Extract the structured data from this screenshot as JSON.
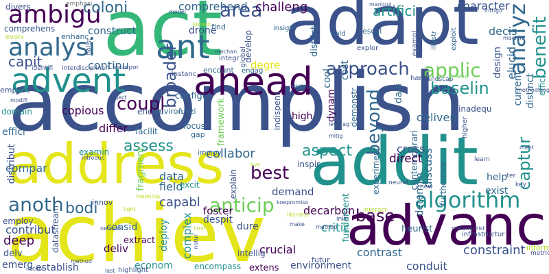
{
  "palette": {
    "dark_purple": "#440154",
    "indigo": "#3b528b",
    "blue": "#31688e",
    "teal": "#21918c",
    "green": "#35b779",
    "light_green": "#6ece58",
    "yellow_green": "#b5de2b",
    "yellow": "#e4e51a",
    "grey": "#777777"
  },
  "words": [
    {
      "text": "accomplish",
      "color": "#3b528b"
    },
    {
      "text": "achiev",
      "color": "#e4e51a"
    },
    {
      "text": "act",
      "color": "#35b779"
    },
    {
      "text": "adapt",
      "color": "#3b528b"
    },
    {
      "text": "addit",
      "color": "#21918c"
    },
    {
      "text": "address",
      "color": "#e4e51a"
    },
    {
      "text": "advanc",
      "color": "#440154"
    },
    {
      "text": "ahead",
      "color": "#440154"
    },
    {
      "text": "advent",
      "color": "#21918c"
    },
    {
      "text": "ant",
      "color": "#31688e"
    },
    {
      "text": "analysi",
      "color": "#31688e"
    },
    {
      "text": "ambigu",
      "color": "#440154"
    },
    {
      "text": "divers",
      "color": "#3b528b"
    },
    {
      "text": "comprehens",
      "color": "#3b528b"
    },
    {
      "text": "evolv",
      "color": "#b5de2b"
    },
    {
      "text": "emphasi",
      "color": "#777777"
    },
    {
      "text": "coloni",
      "color": "#31688e"
    },
    {
      "text": "enhanc",
      "color": "#31688e"
    },
    {
      "text": "construct",
      "color": "#31688e"
    },
    {
      "text": "comprehend",
      "color": "#31688e"
    },
    {
      "text": "area",
      "color": "#3b528b"
    },
    {
      "text": "challeng",
      "color": "#440154"
    },
    {
      "text": "artifici",
      "color": "#21918c"
    },
    {
      "text": "character",
      "color": "#3b528b"
    },
    {
      "text": "capit",
      "color": "#3b528b"
    },
    {
      "text": "continu",
      "color": "#31688e"
    },
    {
      "text": "broader",
      "color": "#3b528b"
    },
    {
      "text": "approach",
      "color": "#3b528b"
    },
    {
      "text": "applic",
      "color": "#6ece58"
    },
    {
      "text": "analyz",
      "color": "#31688e"
    },
    {
      "text": "benefit",
      "color": "#21918c"
    },
    {
      "text": "baselin",
      "color": "#21918c"
    },
    {
      "text": "beyond",
      "color": "#31688e"
    },
    {
      "text": "drone",
      "color": "#3b528b"
    },
    {
      "text": "find",
      "color": "#31688e"
    },
    {
      "text": "develop",
      "color": "#3b528b"
    },
    {
      "text": "district",
      "color": "#31688e"
    },
    {
      "text": "escal",
      "color": "#31688e"
    },
    {
      "text": "decis",
      "color": "#31688e"
    },
    {
      "text": "elucid",
      "color": "#31688e"
    },
    {
      "text": "design",
      "color": "#3b528b"
    },
    {
      "text": "emphas",
      "color": "#3b528b"
    },
    {
      "text": "configur",
      "color": "#31688e"
    },
    {
      "text": "encount",
      "color": "#31688e"
    },
    {
      "text": "degre",
      "color": "#e4e51a"
    },
    {
      "text": "engag",
      "color": "#31688e"
    },
    {
      "text": "fuzzi",
      "color": "#31688e"
    },
    {
      "text": "evalu",
      "color": "#31688e"
    },
    {
      "text": "domain",
      "color": "#21918c"
    },
    {
      "text": "environ",
      "color": "#31688e"
    },
    {
      "text": "energi",
      "color": "#3b528b"
    },
    {
      "text": "effici",
      "color": "#31688e"
    },
    {
      "text": "differ",
      "color": "#440154"
    },
    {
      "text": "coupl",
      "color": "#440154"
    },
    {
      "text": "facilit",
      "color": "#31688e"
    },
    {
      "text": "focus",
      "color": "#31688e"
    },
    {
      "text": "gap",
      "color": "#31688e"
    },
    {
      "text": "cool",
      "color": "#31688e"
    },
    {
      "text": "high",
      "color": "#440154"
    },
    {
      "text": "dynam",
      "color": "#440154"
    },
    {
      "text": "cost",
      "color": "#31688e"
    },
    {
      "text": "demonstr",
      "color": "#31688e"
    },
    {
      "text": "daili",
      "color": "#31688e"
    },
    {
      "text": "deliveri",
      "color": "#31688e"
    },
    {
      "text": "contemporari",
      "color": "#31688e"
    },
    {
      "text": "distinct",
      "color": "#31688e"
    },
    {
      "text": "current",
      "color": "#31688e"
    },
    {
      "text": "effici",
      "color": "#21918c"
    },
    {
      "text": "inadequ",
      "color": "#3b528b"
    },
    {
      "text": "assess",
      "color": "#21918c"
    },
    {
      "text": "copious",
      "color": "#440154"
    },
    {
      "text": "compar",
      "color": "#31688e"
    },
    {
      "text": "collabor",
      "color": "#31688e"
    },
    {
      "text": "aspect",
      "color": "#21918c"
    },
    {
      "text": "captur",
      "color": "#21918c"
    },
    {
      "text": "cross",
      "color": "#3b528b"
    },
    {
      "text": "direct",
      "color": "#440154"
    },
    {
      "text": "discuss",
      "color": "#31688e"
    },
    {
      "text": "distribut",
      "color": "#3b528b"
    },
    {
      "text": "best",
      "color": "#440154"
    },
    {
      "text": "anoth",
      "color": "#31688e"
    },
    {
      "text": "bodi",
      "color": "#31688e"
    },
    {
      "text": "capabl",
      "color": "#3b528b"
    },
    {
      "text": "anticip",
      "color": "#6ece58"
    },
    {
      "text": "algorithm",
      "color": "#21918c"
    },
    {
      "text": "base",
      "color": "#440154"
    },
    {
      "text": "determin",
      "color": "#31688e"
    },
    {
      "text": "help",
      "color": "#31688e"
    },
    {
      "text": "exist",
      "color": "#31688e"
    },
    {
      "text": "data",
      "color": "#31688e"
    },
    {
      "text": "field",
      "color": "#31688e"
    },
    {
      "text": "excit",
      "color": "#21918c"
    },
    {
      "text": "explain",
      "color": "#3b528b"
    },
    {
      "text": "demand",
      "color": "#3b528b"
    },
    {
      "text": "decarbon",
      "color": "#440154"
    },
    {
      "text": "critic",
      "color": "#21918c"
    },
    {
      "text": "furthermor",
      "color": "#31688e"
    },
    {
      "text": "heurist",
      "color": "#31688e"
    },
    {
      "text": "consid",
      "color": "#31688e"
    },
    {
      "text": "deliv",
      "color": "#440154"
    },
    {
      "text": "foster",
      "color": "#440154"
    },
    {
      "text": "despit",
      "color": "#3b528b"
    },
    {
      "text": "dure",
      "color": "#3b528b"
    },
    {
      "text": "crucial",
      "color": "#440154"
    },
    {
      "text": "contribut",
      "color": "#3b528b"
    },
    {
      "text": "deep",
      "color": "#440154"
    },
    {
      "text": "delv",
      "color": "#3b528b"
    },
    {
      "text": "emerg",
      "color": "#3b528b"
    },
    {
      "text": "establish",
      "color": "#3b528b"
    },
    {
      "text": "econom",
      "color": "#21918c"
    },
    {
      "text": "encompass",
      "color": "#21918c"
    },
    {
      "text": "extens",
      "color": "#440154"
    },
    {
      "text": "environment",
      "color": "#3b528b"
    },
    {
      "text": "conduit",
      "color": "#3b528b"
    },
    {
      "text": "contrast",
      "color": "#31688e"
    },
    {
      "text": "constraint",
      "color": "#3b528b"
    },
    {
      "text": "futur",
      "color": "#3b528b"
    },
    {
      "text": "complex",
      "color": "#21918c"
    },
    {
      "text": "deploy",
      "color": "#21918c"
    },
    {
      "text": "employ",
      "color": "#3b528b"
    },
    {
      "text": "datastream",
      "color": "#3b528b"
    },
    {
      "text": "extract",
      "color": "#440154"
    },
    {
      "text": "examin",
      "color": "#21918c"
    },
    {
      "text": "fundament",
      "color": "#21918c"
    },
    {
      "text": "experiment",
      "color": "#31688e"
    },
    {
      "text": "fragment",
      "color": "#6ece58"
    },
    {
      "text": "framework",
      "color": "#6ece58"
    },
    {
      "text": "indispens",
      "color": "#3b528b"
    },
    {
      "text": "inspir",
      "color": "#3b528b"
    },
    {
      "text": "intellig",
      "color": "#3b528b"
    },
    {
      "text": "innov",
      "color": "#3b528b"
    },
    {
      "text": "improv",
      "color": "#31688e"
    },
    {
      "text": "insight",
      "color": "#31688e"
    },
    {
      "text": "hold",
      "color": "#31688e"
    },
    {
      "text": "exploit",
      "color": "#31688e"
    },
    {
      "text": "illustr",
      "color": "#31688e"
    },
    {
      "text": "explor",
      "color": "#3b528b"
    },
    {
      "text": "exampl",
      "color": "#3b528b"
    },
    {
      "text": "integr",
      "color": "#3b528b"
    },
    {
      "text": "incorpor",
      "color": "#3b528b"
    },
    {
      "text": "instanc",
      "color": "#3b528b"
    },
    {
      "text": "interdisciplinari",
      "color": "#3b528b"
    },
    {
      "text": "identifi",
      "color": "#3b528b"
    },
    {
      "text": "holist",
      "color": "#3b528b"
    },
    {
      "text": "global",
      "color": "#3b528b"
    },
    {
      "text": "handl",
      "color": "#3b528b"
    },
    {
      "text": "higher",
      "color": "#3b528b"
    },
    {
      "text": "landscap",
      "color": "#3b528b"
    },
    {
      "text": "manipul",
      "color": "#3b528b"
    },
    {
      "text": "intrigu",
      "color": "#3b528b"
    },
    {
      "text": "machin",
      "color": "#3b528b"
    },
    {
      "text": "methodolog",
      "color": "#3b528b"
    },
    {
      "text": "lead",
      "color": "#6ece58"
    },
    {
      "text": "learn",
      "color": "#3b528b"
    },
    {
      "text": "iter",
      "color": "#3b528b"
    },
    {
      "text": "key",
      "color": "#3b528b"
    },
    {
      "text": "meet",
      "color": "#3b528b"
    },
    {
      "text": "introduc",
      "color": "#3b528b"
    },
    {
      "text": "neural",
      "color": "#3b528b"
    },
    {
      "text": "new",
      "color": "#3b528b"
    },
    {
      "text": "interact",
      "color": "#b5de2b"
    },
    {
      "text": "initi",
      "color": "#3b528b"
    },
    {
      "text": "mathbb",
      "color": "#3b528b"
    },
    {
      "text": "make",
      "color": "#3b528b"
    },
    {
      "text": "literatur",
      "color": "#b5de2b"
    },
    {
      "text": "metaheurist",
      "color": "#3b528b"
    },
    {
      "text": "infrastructur",
      "color": "#3b528b"
    },
    {
      "text": "inform",
      "color": "#b5de2b"
    },
    {
      "text": "metric",
      "color": "#3b528b"
    },
    {
      "text": "koepromiso",
      "color": "#3b528b"
    },
    {
      "text": "network",
      "color": "#3b528b"
    },
    {
      "text": "natur",
      "color": "#3b528b"
    },
    {
      "text": "method",
      "color": "#3b528b"
    },
    {
      "text": "notabl",
      "color": "#3b528b"
    },
    {
      "text": "highlight",
      "color": "#3b528b"
    },
    {
      "text": "last",
      "color": "#3b528b"
    },
    {
      "text": "known",
      "color": "#b5de2b"
    },
    {
      "text": "mechan",
      "color": "#3b528b"
    },
    {
      "text": "novel",
      "color": "#3b528b"
    },
    {
      "text": "model",
      "color": "#3b528b"
    },
    {
      "text": "modifi",
      "color": "#3b528b"
    },
    {
      "text": "object",
      "color": "#3b528b"
    },
    {
      "text": "leverag",
      "color": "#3b528b"
    },
    {
      "text": "mitig",
      "color": "#3b528b"
    },
    {
      "text": "meaning",
      "color": "#b5de2b"
    },
    {
      "text": "light",
      "color": "#b5de2b"
    },
    {
      "text": "live",
      "color": "#b5de2b"
    },
    {
      "text": "limit",
      "color": "#b5de2b"
    }
  ]
}
